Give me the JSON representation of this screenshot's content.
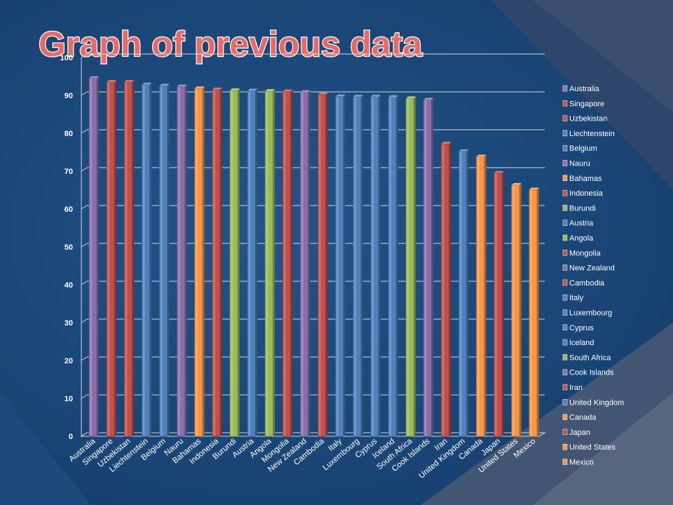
{
  "slide": {
    "title": "Graph of previous data"
  },
  "colors": {
    "background": "#1a4677",
    "purple": "#8a6eab",
    "red": "#c0504d",
    "blue": "#4f81bd",
    "orange": "#f79646",
    "green": "#9bbb59",
    "gridline": "#d0d7e2",
    "title_fill": "#e46c68"
  },
  "chart_data": {
    "type": "bar",
    "title": "",
    "xlabel": "",
    "ylabel": "",
    "ylim": [
      0,
      100
    ],
    "yticks": [
      0,
      10,
      20,
      30,
      40,
      50,
      60,
      70,
      80,
      90,
      100
    ],
    "grid": "horizontal",
    "legend_position": "right",
    "categories": [
      "Australia",
      "Singapore",
      "Uzbekistan",
      "Liechtenstein",
      "Belgium",
      "Nauru",
      "Bahamas",
      "Indonesia",
      "Burundi",
      "Austria",
      "Angola",
      "Mongolia",
      "New Zealand",
      "Cambodia",
      "Italy",
      "Luxembourg",
      "Cyprus",
      "Iceland",
      "South Africa",
      "Cook Islands",
      "Iran",
      "United Kingdom",
      "Canada",
      "Japan",
      "United States",
      "Mexico"
    ],
    "values": [
      94.5,
      93.5,
      93.5,
      92.8,
      92.5,
      92.3,
      91.8,
      91.5,
      91.3,
      91.2,
      91.1,
      91.0,
      90.8,
      90.2,
      89.7,
      89.6,
      89.6,
      89.5,
      89.2,
      88.8,
      77.2,
      75.2,
      73.8,
      69.5,
      66.3,
      65.1
    ],
    "bar_colors": [
      "#8a6eab",
      "#c0504d",
      "#c0504d",
      "#4f81bd",
      "#4f81bd",
      "#8a6eab",
      "#f79646",
      "#c0504d",
      "#9bbb59",
      "#4f81bd",
      "#9bbb59",
      "#c0504d",
      "#8a6eab",
      "#c0504d",
      "#4f81bd",
      "#4f81bd",
      "#4f81bd",
      "#4f81bd",
      "#9bbb59",
      "#8a6eab",
      "#c0504d",
      "#4f81bd",
      "#f79646",
      "#c0504d",
      "#f79646",
      "#f79646"
    ]
  }
}
